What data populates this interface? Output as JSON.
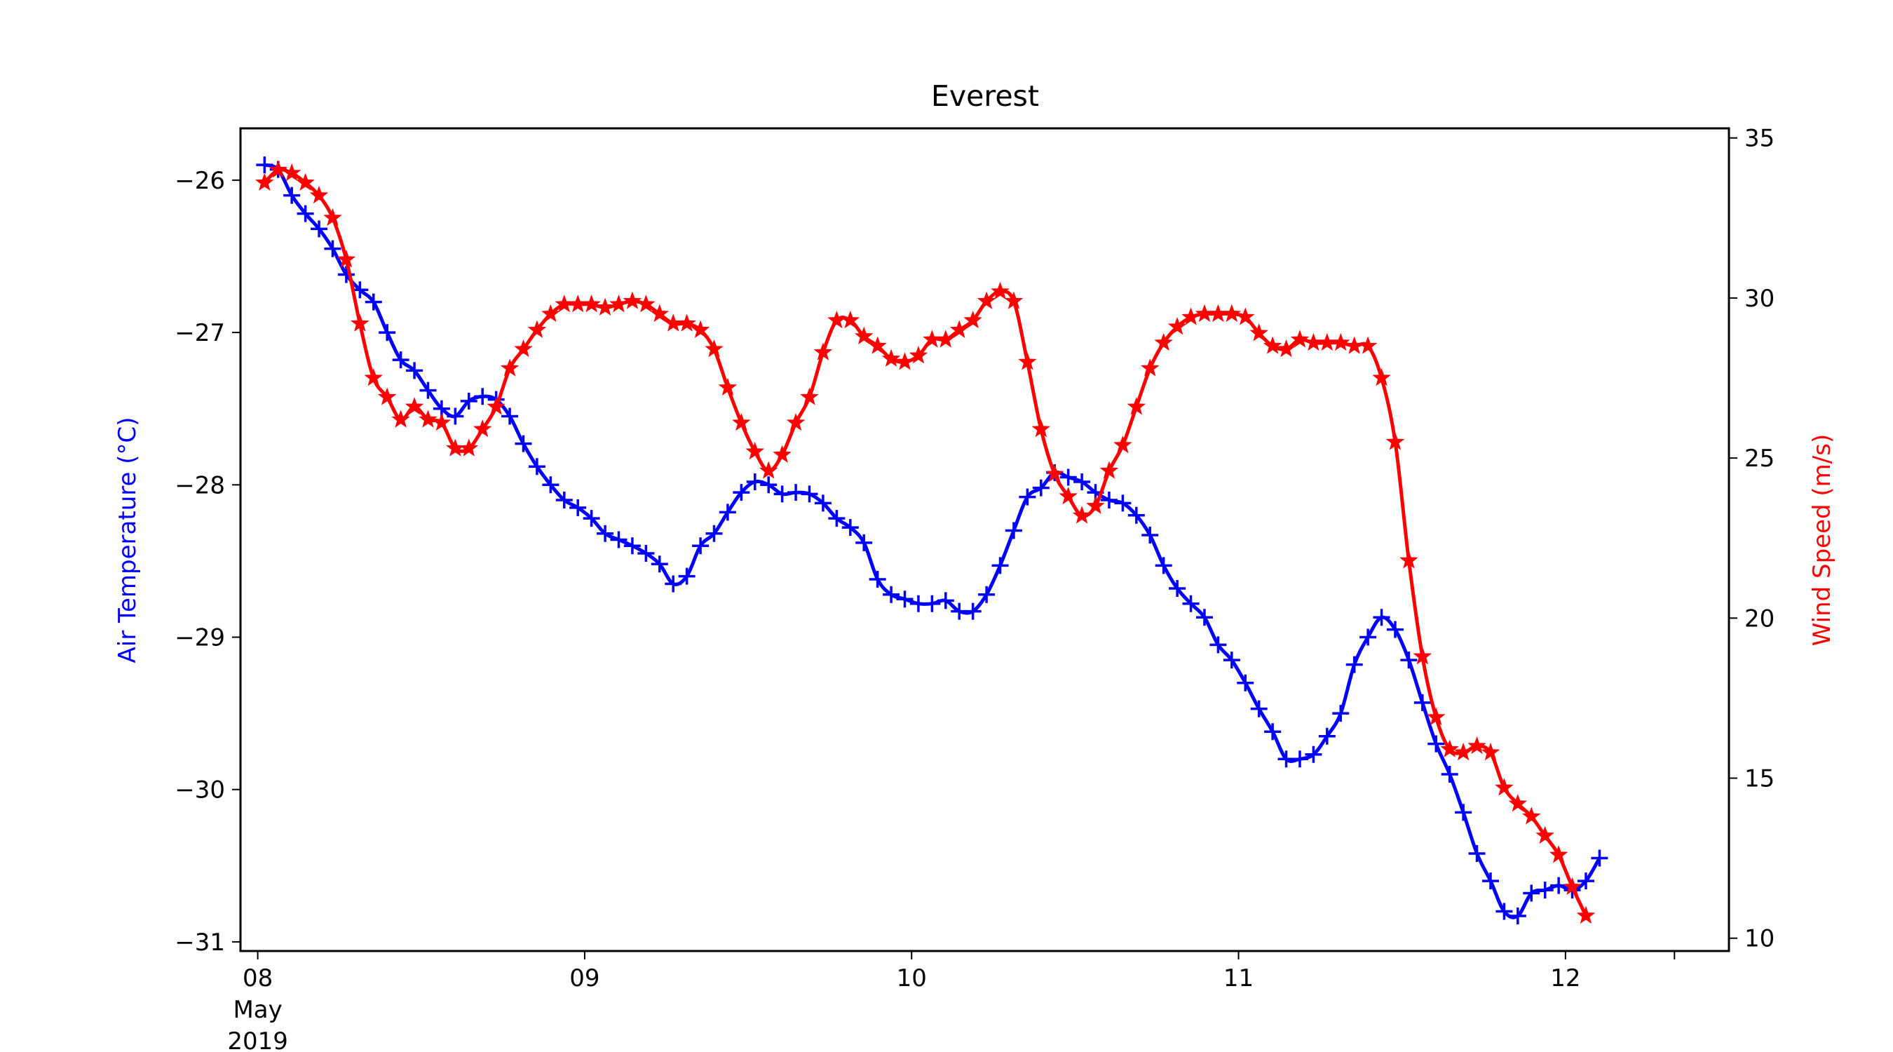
{
  "chart_data": {
    "type": "line",
    "title": "Everest",
    "xlabel": "",
    "x_axis": {
      "type": "date",
      "range": [
        "2019-05-07T22:44",
        "2019-05-12T12:00"
      ],
      "ticks": [
        {
          "value": "2019-05-08T00:00",
          "label": "08"
        },
        {
          "value": "2019-05-09T00:00",
          "label": "09"
        },
        {
          "value": "2019-05-10T00:00",
          "label": "10"
        },
        {
          "value": "2019-05-11T00:00",
          "label": "11"
        },
        {
          "value": "2019-05-12T00:00",
          "label": "12"
        }
      ],
      "first_tick_extra_lines": [
        "May",
        "2019"
      ]
    },
    "y_left": {
      "label": "Air Temperature (°C)",
      "color": "#0000ff",
      "range": [
        -31.06,
        -25.66
      ],
      "ticks": [
        -26,
        -27,
        -28,
        -29,
        -30,
        -31
      ],
      "tick_labels": [
        "−26",
        "−27",
        "−28",
        "−29",
        "−30",
        "−31"
      ]
    },
    "y_right": {
      "label": "Wind Speed (m/s)",
      "color": "#ff0000",
      "range": [
        9.6,
        35.3
      ],
      "ticks": [
        10,
        15,
        20,
        25,
        30,
        35
      ],
      "tick_labels": [
        "10",
        "15",
        "20",
        "25",
        "30",
        "35"
      ]
    },
    "grid": false,
    "series": [
      {
        "axis": "left",
        "color": "#0000ff",
        "marker": "plus",
        "x_start": "2019-05-08T00:30",
        "x_step_minutes": 60,
        "values": [
          -25.9,
          -25.93,
          -26.1,
          -26.22,
          -26.32,
          -26.45,
          -26.62,
          -26.72,
          -26.8,
          -27.0,
          -27.18,
          -27.25,
          -27.38,
          -27.5,
          -27.55,
          -27.45,
          -27.42,
          -27.44,
          -27.55,
          -27.73,
          -27.88,
          -28.0,
          -28.1,
          -28.15,
          -28.22,
          -28.32,
          -28.36,
          -28.4,
          -28.45,
          -28.52,
          -28.65,
          -28.6,
          -28.4,
          -28.32,
          -28.18,
          -28.05,
          -27.98,
          -28.0,
          -28.06,
          -28.05,
          -28.06,
          -28.12,
          -28.22,
          -28.28,
          -28.38,
          -28.62,
          -28.72,
          -28.75,
          -28.78,
          -28.78,
          -28.76,
          -28.83,
          -28.83,
          -28.72,
          -28.53,
          -28.3,
          -28.08,
          -28.02,
          -27.92,
          -27.95,
          -27.98,
          -28.05,
          -28.1,
          -28.12,
          -28.2,
          -28.33,
          -28.53,
          -28.68,
          -28.78,
          -28.87,
          -29.05,
          -29.15,
          -29.3,
          -29.47,
          -29.62,
          -29.8,
          -29.8,
          -29.77,
          -29.65,
          -29.5,
          -29.18,
          -29.0,
          -28.87,
          -28.95,
          -29.15,
          -29.43,
          -29.7,
          -29.9,
          -30.15,
          -30.42,
          -30.6,
          -30.8,
          -30.83,
          -30.68,
          -30.66,
          -30.63,
          -30.66,
          -30.6,
          -30.45
        ]
      },
      {
        "axis": "right",
        "color": "#ff0000",
        "marker": "star",
        "x_start": "2019-05-08T00:30",
        "x_step_minutes": 60,
        "values": [
          33.6,
          34.0,
          33.9,
          33.6,
          33.2,
          32.5,
          31.2,
          29.2,
          27.5,
          26.9,
          26.2,
          26.6,
          26.2,
          26.1,
          25.3,
          25.3,
          25.9,
          26.6,
          27.8,
          28.4,
          29.0,
          29.5,
          29.8,
          29.8,
          29.8,
          29.7,
          29.8,
          29.9,
          29.8,
          29.5,
          29.2,
          29.2,
          29.0,
          28.4,
          27.2,
          26.1,
          25.2,
          24.6,
          25.1,
          26.1,
          26.9,
          28.3,
          29.3,
          29.3,
          28.8,
          28.5,
          28.1,
          28.0,
          28.2,
          28.7,
          28.7,
          29.0,
          29.3,
          29.9,
          30.2,
          29.9,
          28.0,
          25.9,
          24.5,
          23.8,
          23.2,
          23.5,
          24.6,
          25.4,
          26.6,
          27.8,
          28.6,
          29.1,
          29.4,
          29.5,
          29.5,
          29.5,
          29.4,
          28.9,
          28.5,
          28.4,
          28.7,
          28.6,
          28.6,
          28.6,
          28.5,
          28.5,
          27.5,
          25.5,
          21.8,
          18.8,
          16.9,
          15.9,
          15.8,
          16.0,
          15.8,
          14.7,
          14.2,
          13.8,
          13.2,
          12.6,
          11.6,
          10.7
        ]
      }
    ]
  }
}
